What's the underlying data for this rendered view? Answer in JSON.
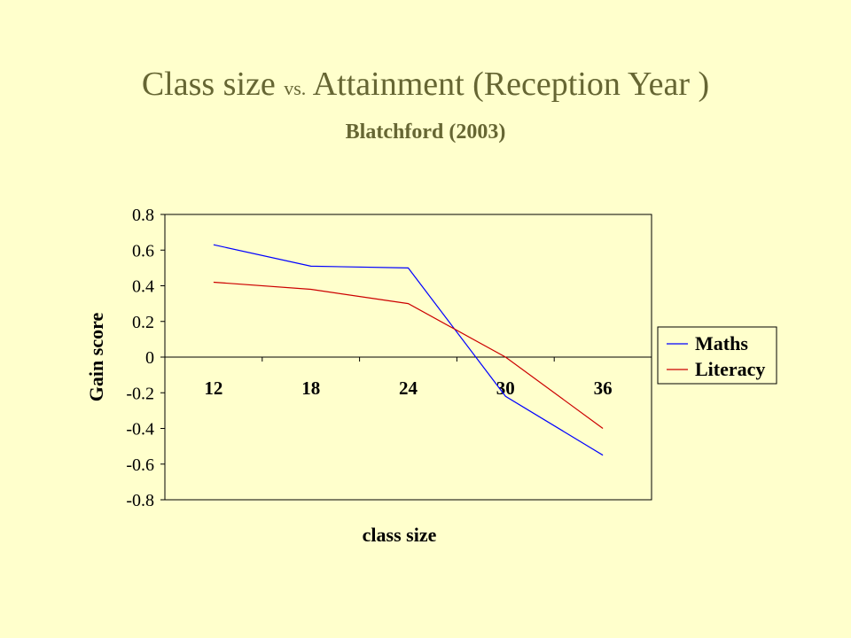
{
  "slide": {
    "title_main": "Class size ",
    "title_vs": "vs.",
    "title_rest": " Attainment  (Reception Year )",
    "subtitle": "Blatchford (2003)"
  },
  "colors": {
    "background": "#FFFFCC",
    "title": "#666633",
    "maths": "#0000FF",
    "literacy": "#CC0000"
  },
  "chart_data": {
    "type": "line",
    "categories": [
      "12",
      "18",
      "24",
      "30",
      "36"
    ],
    "series": [
      {
        "name": "Maths",
        "values": [
          0.63,
          0.51,
          0.5,
          -0.22,
          -0.55
        ]
      },
      {
        "name": "Literacy",
        "values": [
          0.42,
          0.38,
          0.3,
          0.0,
          -0.4
        ]
      }
    ],
    "xlabel": "class size",
    "ylabel": "Gain score",
    "ylim": [
      -0.8,
      0.8
    ],
    "yticks": [
      "0.8",
      "0.6",
      "0.4",
      "0.2",
      "0",
      "-0.2",
      "-0.4",
      "-0.6",
      "-0.8"
    ],
    "grid": false,
    "legend_position": "right"
  }
}
